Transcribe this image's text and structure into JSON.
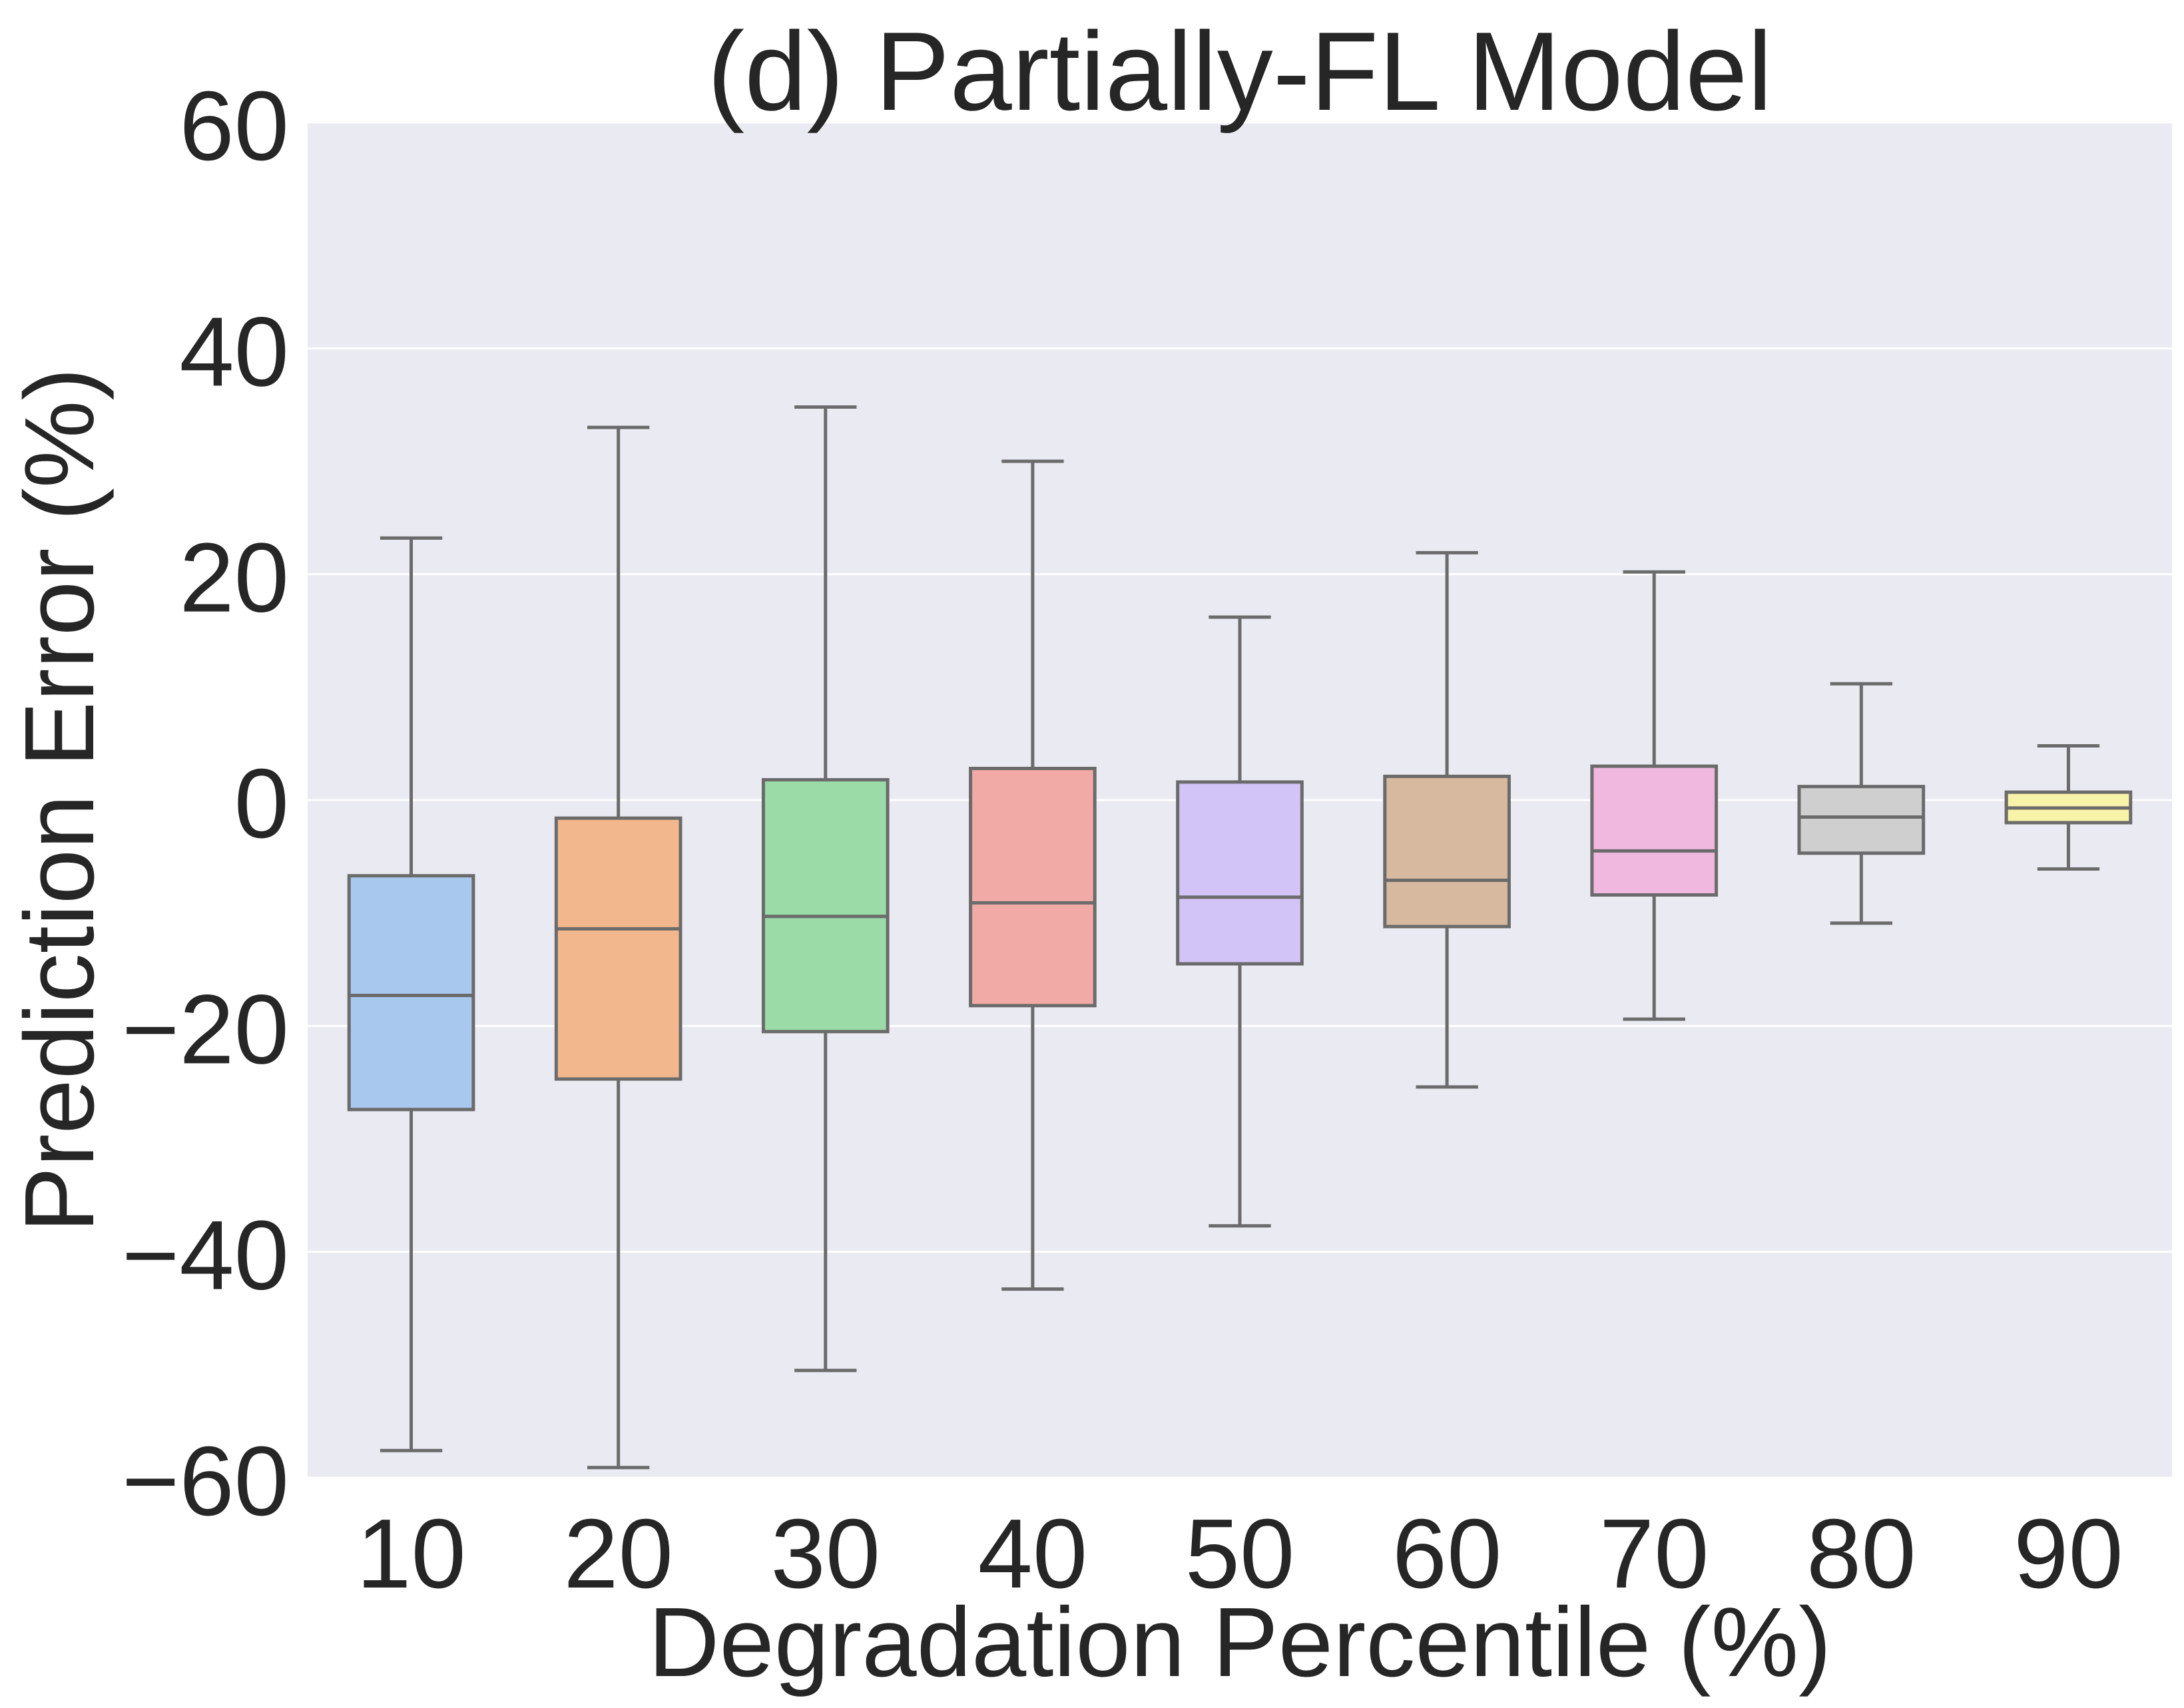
{
  "chart_data": {
    "type": "box",
    "title": "(d) Partially-FL Model",
    "xlabel": "Degradation Percentile (%)",
    "ylabel": "Prediction Error (%)",
    "ylim": [
      -60,
      60
    ],
    "yticks": [
      -60,
      -40,
      -20,
      0,
      20,
      40,
      60
    ],
    "ytick_labels": [
      "−60",
      "−40",
      "−20",
      "0",
      "20",
      "40",
      "60"
    ],
    "grid": true,
    "background": "#eaeaf2",
    "grid_color": "#ffffff",
    "box_edge_color": "#6b6b6b",
    "categories": [
      "10",
      "20",
      "30",
      "40",
      "50",
      "60",
      "70",
      "80",
      "90"
    ],
    "boxes": [
      {
        "category": "10",
        "whisker_low": -57.6,
        "q1": -27.4,
        "median": -17.3,
        "q3": -6.7,
        "whisker_high": 23.2,
        "color": "#a9c8ed"
      },
      {
        "category": "20",
        "whisker_low": -59.1,
        "q1": -24.7,
        "median": -11.4,
        "q3": -1.6,
        "whisker_high": 33.0,
        "color": "#f2b78d"
      },
      {
        "category": "30",
        "whisker_low": -50.5,
        "q1": -20.5,
        "median": -10.3,
        "q3": 1.8,
        "whisker_high": 34.8,
        "color": "#9adba8"
      },
      {
        "category": "40",
        "whisker_low": -43.3,
        "q1": -18.2,
        "median": -9.1,
        "q3": 2.8,
        "whisker_high": 30.0,
        "color": "#f2aaa6"
      },
      {
        "category": "50",
        "whisker_low": -37.7,
        "q1": -14.5,
        "median": -8.6,
        "q3": 1.6,
        "whisker_high": 16.2,
        "color": "#d2c4f7"
      },
      {
        "category": "60",
        "whisker_low": -25.4,
        "q1": -11.2,
        "median": -7.1,
        "q3": 2.1,
        "whisker_high": 21.9,
        "color": "#d6b99e"
      },
      {
        "category": "70",
        "whisker_low": -19.4,
        "q1": -8.4,
        "median": -4.5,
        "q3": 3.0,
        "whisker_high": 20.2,
        "color": "#f1b8df"
      },
      {
        "category": "80",
        "whisker_low": -10.9,
        "q1": -4.7,
        "median": -1.5,
        "q3": 1.2,
        "whisker_high": 10.3,
        "color": "#cfcfcf"
      },
      {
        "category": "90",
        "whisker_low": -6.1,
        "q1": -2.0,
        "median": -0.7,
        "q3": 0.7,
        "whisker_high": 4.8,
        "color": "#f7f3a8"
      }
    ]
  }
}
